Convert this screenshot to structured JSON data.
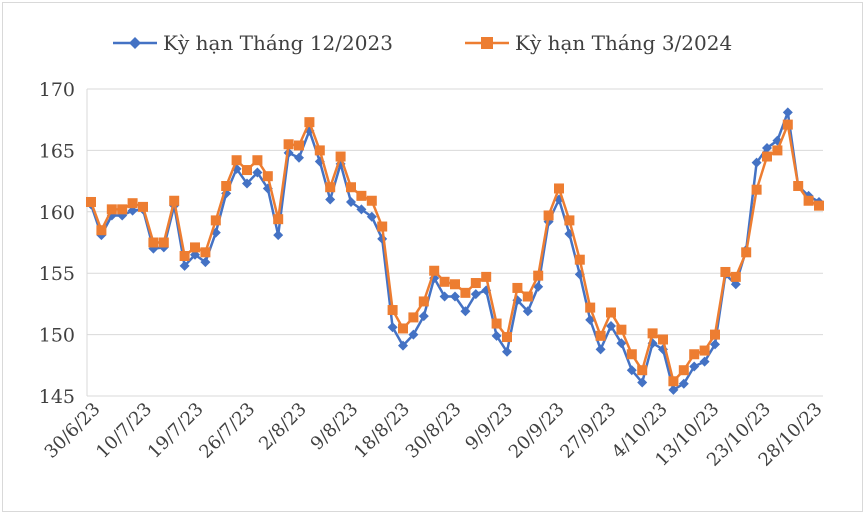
{
  "chart_data": {
    "type": "line",
    "title": "",
    "xlabel": "",
    "ylabel": "",
    "ylim": [
      145,
      170
    ],
    "yticks": [
      145,
      150,
      155,
      160,
      165,
      170
    ],
    "grid": "horizontal",
    "legend_position": "top",
    "x_tick_labels": [
      "30/6/23",
      "10/7/23",
      "19/7/23",
      "26/7/23",
      "2/8/23",
      "9/8/23",
      "18/8/23",
      "30/8/23",
      "9/9/23",
      "20/9/23",
      "27/9/23",
      "4/10/23",
      "13/10/23",
      "23/10/23",
      "28/10/23"
    ],
    "series": [
      {
        "name": "Kỳ hạn Tháng 12/2023",
        "color": "#4472C4",
        "marker": "diamond",
        "values": [
          160.6,
          158.1,
          159.7,
          159.7,
          160.1,
          160.2,
          157.0,
          157.1,
          160.5,
          155.6,
          156.5,
          155.9,
          158.3,
          161.5,
          163.5,
          162.3,
          163.2,
          161.9,
          158.1,
          164.8,
          164.4,
          166.6,
          164.1,
          161.0,
          163.9,
          160.8,
          160.2,
          159.6,
          157.8,
          150.6,
          149.1,
          150.0,
          151.5,
          154.6,
          153.1,
          153.1,
          151.9,
          153.3,
          153.6,
          149.9,
          148.6,
          152.8,
          151.9,
          153.9,
          159.2,
          161.0,
          158.2,
          154.9,
          151.2,
          148.8,
          150.7,
          149.3,
          147.1,
          146.1,
          149.3,
          148.8,
          145.5,
          146.0,
          147.4,
          147.8,
          149.2,
          154.9,
          154.1,
          156.9,
          164.0,
          165.2,
          165.8,
          168.1,
          162.1,
          161.3,
          160.8
        ]
      },
      {
        "name": "Kỳ hạn Tháng 3/2024",
        "color": "#ED7D31",
        "marker": "square",
        "values": [
          160.8,
          158.5,
          160.2,
          160.2,
          160.7,
          160.4,
          157.5,
          157.5,
          160.9,
          156.4,
          157.1,
          156.7,
          159.3,
          162.1,
          164.2,
          163.4,
          164.2,
          162.9,
          159.4,
          165.5,
          165.4,
          167.3,
          165.0,
          162.0,
          164.5,
          162.0,
          161.3,
          160.9,
          158.8,
          152.0,
          150.5,
          151.4,
          152.7,
          155.2,
          154.3,
          154.1,
          153.4,
          154.2,
          154.7,
          150.9,
          149.8,
          153.8,
          153.1,
          154.8,
          159.7,
          161.9,
          159.3,
          156.1,
          152.2,
          149.9,
          151.8,
          150.4,
          148.4,
          147.1,
          150.1,
          149.6,
          146.2,
          147.1,
          148.4,
          148.7,
          150.0,
          155.1,
          154.7,
          156.7,
          161.8,
          164.5,
          165.0,
          167.1,
          162.1,
          160.9,
          160.5
        ]
      }
    ]
  }
}
